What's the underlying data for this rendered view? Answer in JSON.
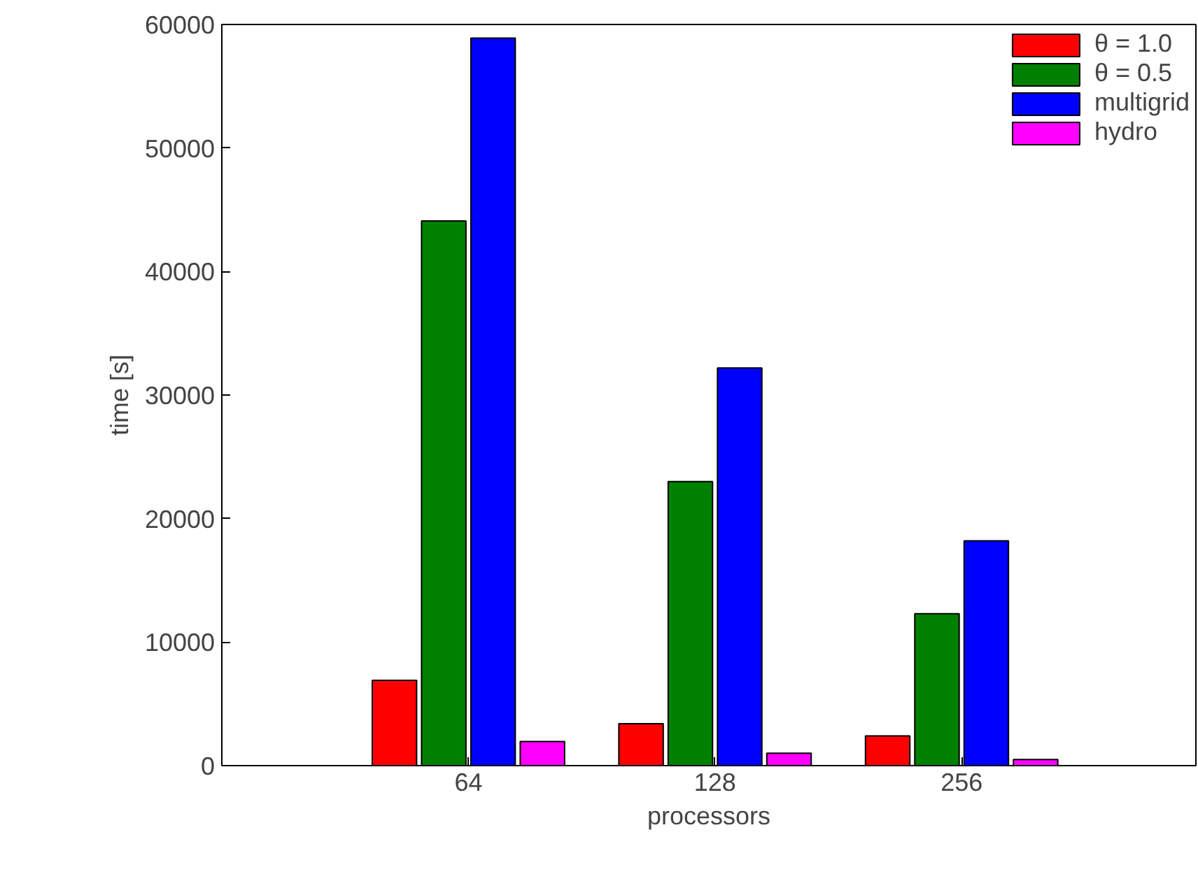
{
  "chart_data": {
    "type": "bar",
    "xlabel": "processors",
    "ylabel": "time [s]",
    "categories": [
      "64",
      "128",
      "256"
    ],
    "series": [
      {
        "name": "θ = 1.0",
        "color": "#ff0000",
        "values": [
          6900,
          3400,
          2400
        ]
      },
      {
        "name": "θ = 0.5",
        "color": "#008000",
        "values": [
          44100,
          23000,
          12300
        ]
      },
      {
        "name": "multigrid",
        "color": "#0000ff",
        "values": [
          58900,
          32200,
          18200
        ]
      },
      {
        "name": "hydro",
        "color": "#ff00ff",
        "values": [
          1950,
          1000,
          500
        ]
      }
    ],
    "ylim": [
      0,
      60000
    ],
    "yticks": [
      0,
      10000,
      20000,
      30000,
      40000,
      50000,
      60000
    ],
    "grid": false,
    "legend": "top right"
  }
}
